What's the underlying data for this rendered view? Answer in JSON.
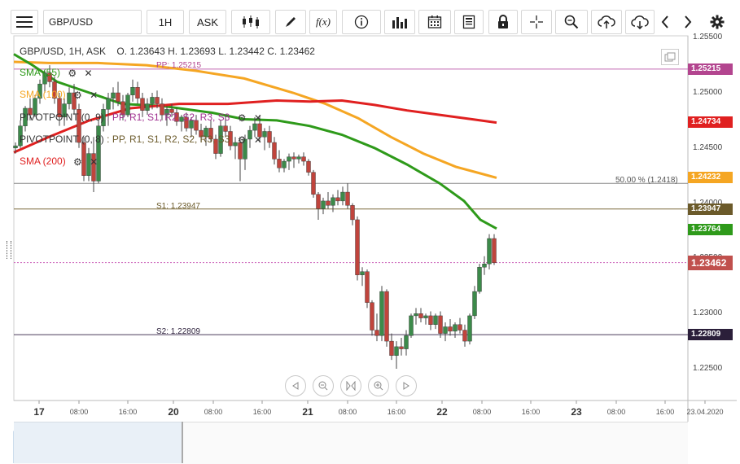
{
  "toolbar": {
    "symbol": "GBP/USD",
    "timeframe": "1H",
    "price_side": "ASK",
    "fx_label": "f(x)"
  },
  "chart": {
    "header": "GBP/USD, 1H, ASK",
    "ohlc": {
      "open": "O. 1.23643",
      "high": "H. 1.23693",
      "low": "L. 1.23442",
      "close": "C. 1.23462"
    },
    "indicators": [
      {
        "label": "SMA (55)",
        "color": "#2e9a1a"
      },
      {
        "label": "SMA (100)",
        "color": "#f5a623"
      },
      {
        "label": "PIVOTPOINT (0, 9)",
        "suffix": ": PP, R1, S1, R2, S2, R3, S3",
        "color": "#333333"
      },
      {
        "label": "PIVOTPOINT (0, 8)",
        "suffix": ": PP, R1, S1, R2, S2, R3, S3",
        "color": "#333333"
      },
      {
        "label": "SMA (200)",
        "color": "#e02020"
      }
    ],
    "levels": {
      "pp": "PP: 1.25215",
      "s1": "S1: 1.23947",
      "s2": "S2: 1.22809",
      "fib": "50.00 % (1.2418)"
    },
    "y_axis": [
      "1.25500",
      "1.25000",
      "1.24500",
      "1.24000",
      "1.23500",
      "1.23000",
      "1.22500"
    ],
    "price_tags": [
      {
        "value": "1.25215",
        "color": "#b3458f"
      },
      {
        "value": "1.24734",
        "color": "#e02020"
      },
      {
        "value": "1.24232",
        "color": "#f5a623"
      },
      {
        "value": "1.23947",
        "color": "#6b5a2a"
      },
      {
        "value": "1.23764",
        "color": "#2e9a1a"
      },
      {
        "value": "1.23462",
        "color": "#c0504d"
      },
      {
        "value": "1.22809",
        "color": "#2b1f3a"
      }
    ],
    "x_axis": [
      {
        "text": "17",
        "day": true
      },
      {
        "text": "08:00"
      },
      {
        "text": "16:00"
      },
      {
        "text": "20",
        "day": true
      },
      {
        "text": "08:00"
      },
      {
        "text": "16:00"
      },
      {
        "text": "21",
        "day": true
      },
      {
        "text": "08:00"
      },
      {
        "text": "16:00"
      },
      {
        "text": "22",
        "day": true
      },
      {
        "text": "08:00"
      },
      {
        "text": "16:00"
      },
      {
        "text": "23",
        "day": true
      },
      {
        "text": "08:00"
      },
      {
        "text": "16:00"
      },
      {
        "text": "23.04.2020"
      }
    ]
  }
}
